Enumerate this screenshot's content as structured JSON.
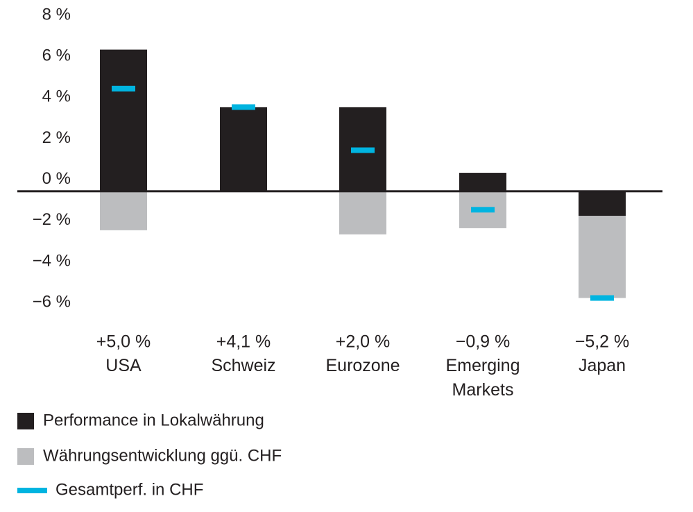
{
  "chart_data": {
    "type": "bar",
    "stacked": true,
    "categories": [
      "USA",
      "Schweiz",
      "Eurozone",
      "Emerging Markets",
      "Japan"
    ],
    "series": [
      {
        "name": "Performance in Lokalwährung",
        "type": "bar",
        "color": "#231f20",
        "values": [
          6.9,
          4.1,
          4.1,
          0.9,
          -1.2
        ]
      },
      {
        "name": "Währungsentwicklung ggü. CHF",
        "type": "bar",
        "color": "#bcbdbf",
        "values": [
          -1.9,
          0,
          -2.1,
          -1.8,
          -4.0
        ]
      },
      {
        "name": "Gesamtperf. in CHF",
        "type": "marker",
        "color": "#00b4e0",
        "values": [
          5.0,
          4.1,
          2.0,
          -0.9,
          -5.2
        ],
        "value_labels": [
          "+5,0 %",
          "+4,1 %",
          "+2,0 %",
          "−0,9 %",
          "−5,2 %"
        ]
      }
    ],
    "ylim": [
      -6.5,
      8
    ],
    "yticks": [
      {
        "value": 8,
        "label": "8 %"
      },
      {
        "value": 6,
        "label": "6 %"
      },
      {
        "value": 4,
        "label": "4 %"
      },
      {
        "value": 2,
        "label": "2 %"
      },
      {
        "value": 0,
        "label": "0 %"
      },
      {
        "value": -2,
        "label": "−2 %"
      },
      {
        "value": -4,
        "label": "−4 %"
      },
      {
        "value": -6,
        "label": "−6 %"
      }
    ],
    "grid": false
  }
}
